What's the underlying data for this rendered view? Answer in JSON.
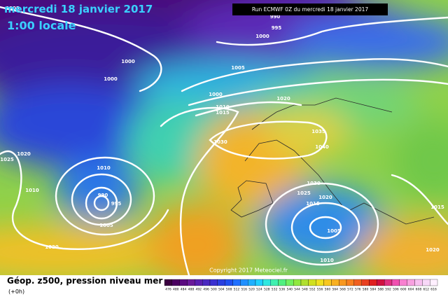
{
  "header": {
    "date": "mercredi 18 janvier 2017",
    "time": "1:00 locale",
    "run": "Run ECMWF 0Z du mercredi 18 janvier 2017"
  },
  "isobar_labels": [
    1005,
    990,
    995,
    1000,
    1000,
    1000,
    1005,
    1000,
    1010,
    1015,
    1020,
    1035,
    1040,
    1030,
    1020,
    1025,
    1010,
    1010,
    990,
    995,
    1005,
    1020,
    1030,
    1025,
    1020,
    1015,
    1005,
    1010,
    1015,
    1020
  ],
  "footer": {
    "copyright": "Copyright 2017 Meteociel.fr",
    "legend_title": "Géop. z500, pression niveau mer",
    "lead_time": "(+0h)"
  },
  "colorbar": {
    "values": [
      476,
      480,
      484,
      488,
      492,
      496,
      500,
      504,
      508,
      512,
      516,
      520,
      524,
      528,
      532,
      536,
      540,
      544,
      548,
      552,
      556,
      560,
      564,
      568,
      572,
      576,
      580,
      584,
      588,
      592,
      596,
      600,
      604,
      608,
      612,
      616
    ],
    "colors": [
      "#3a0040",
      "#4a0060",
      "#5a0a80",
      "#6a1a9a",
      "#5a20b0",
      "#4a28c0",
      "#3a30d0",
      "#2a40e0",
      "#2050f0",
      "#2070ff",
      "#2090ff",
      "#20b0ff",
      "#20d0ff",
      "#30e8e0",
      "#40f0b0",
      "#50f080",
      "#70f060",
      "#90e840",
      "#b0e030",
      "#d0e020",
      "#f0e020",
      "#f8c820",
      "#f8b020",
      "#f89820",
      "#f88020",
      "#f06020",
      "#e84020",
      "#e02020",
      "#d01040",
      "#e03080",
      "#f050b0",
      "#f880d0",
      "#f8a0e0",
      "#f8c0f0",
      "#f8d8f8",
      "#fff0ff"
    ]
  }
}
